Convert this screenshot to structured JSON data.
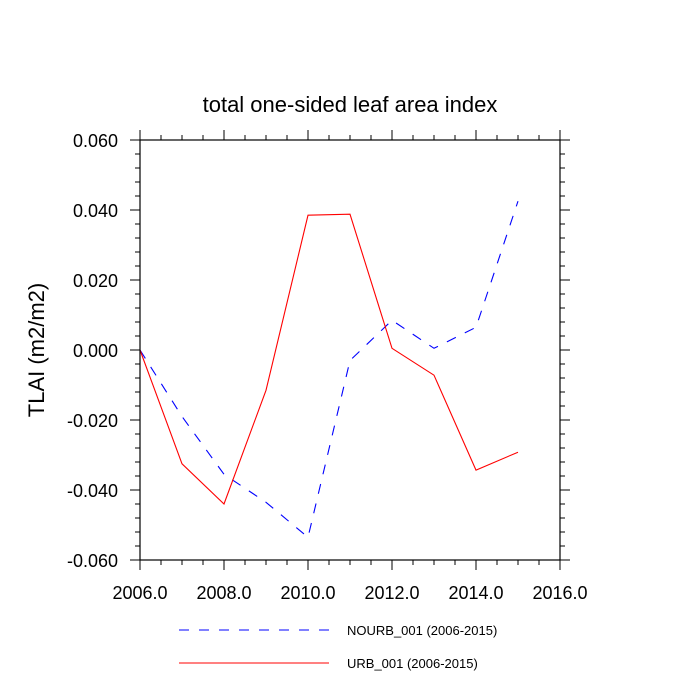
{
  "chart_data": {
    "type": "line",
    "title": "total one-sided leaf area index",
    "xlabel": "",
    "ylabel": "TLAI  (m2/m2)",
    "xlim": [
      2006,
      2016
    ],
    "ylim": [
      -0.06,
      0.06
    ],
    "xticks": [
      2006,
      2008,
      2010,
      2012,
      2014,
      2016
    ],
    "xtick_labels": [
      "2006.0",
      "2008.0",
      "2010.0",
      "2012.0",
      "2014.0",
      "2016.0"
    ],
    "yticks": [
      -0.06,
      -0.04,
      -0.02,
      0.0,
      0.02,
      0.04,
      0.06
    ],
    "ytick_labels": [
      "-0.060",
      "-0.040",
      "-0.020",
      "0.000",
      "0.020",
      "0.040",
      "0.060"
    ],
    "grid": false,
    "legend_position": "bottom",
    "series": [
      {
        "name": "NOURB_001 (2006-2015)",
        "color": "#0000ff",
        "dash": "dashed",
        "x": [
          2006,
          2007,
          2008,
          2009,
          2010,
          2011,
          2012,
          2013,
          2014,
          2015
        ],
        "values": [
          0.0,
          -0.019,
          -0.0355,
          -0.0435,
          -0.0535,
          -0.003,
          0.0085,
          0.0005,
          0.0065,
          0.0425
        ]
      },
      {
        "name": "URB_001 (2006-2015)",
        "color": "#ff0000",
        "dash": "solid",
        "x": [
          2006,
          2007,
          2008,
          2009,
          2010,
          2011,
          2012,
          2013,
          2014,
          2015
        ],
        "values": [
          0.0,
          -0.0325,
          -0.044,
          -0.0115,
          0.0385,
          0.0388,
          0.0005,
          -0.0072,
          -0.0343,
          -0.0292
        ]
      }
    ]
  }
}
